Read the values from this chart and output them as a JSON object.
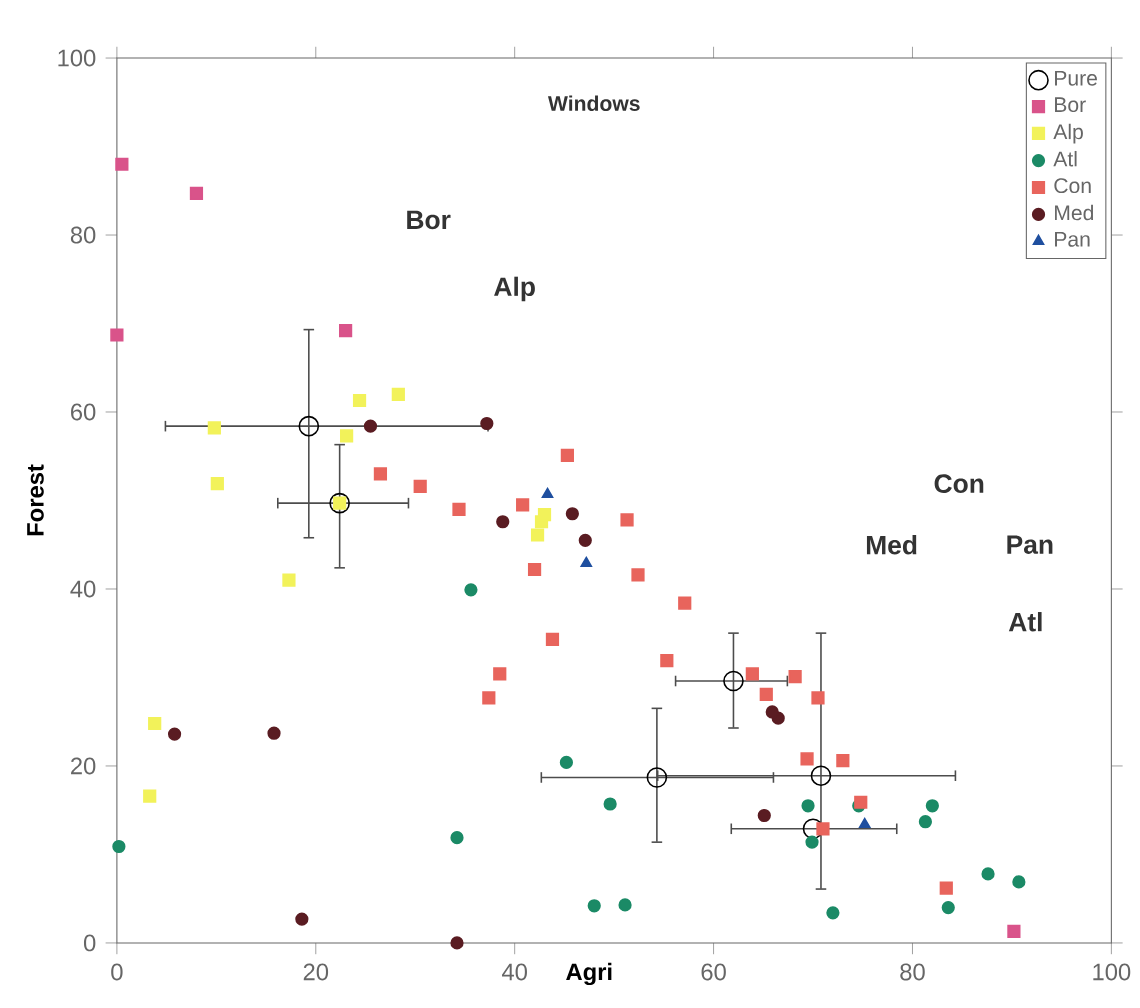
{
  "chart_data": {
    "type": "scatter",
    "xlabel": "Agri",
    "ylabel": "Forest",
    "xlim": [
      0,
      100
    ],
    "ylim": [
      0,
      100
    ],
    "xticks": [
      0,
      20,
      40,
      60,
      80,
      100
    ],
    "yticks": [
      0,
      20,
      40,
      60,
      80,
      100
    ],
    "legend": "top right",
    "annotations": [
      "Windows",
      "Bor",
      "Alp",
      "Con",
      "Med",
      "Pan",
      "Atl"
    ],
    "series": [
      {
        "name": "Pure",
        "color": "#000000",
        "marker": "circle",
        "x": [
          19.3,
          22.4,
          62.0,
          54.3,
          70.8,
          70.0
        ],
        "values": [
          58.4,
          49.7,
          29.6,
          18.7,
          18.9,
          12.9
        ],
        "xerrors": [
          [
            4.8,
            37.4
          ],
          [
            16.1,
            29.4
          ],
          [
            56.1,
            67.5
          ],
          [
            42.6,
            66.1
          ],
          [
            54.3,
            84.4
          ],
          [
            61.7,
            78.5
          ]
        ],
        "errors": [
          [
            45.7,
            69.4
          ],
          [
            42.3,
            56.4
          ],
          [
            24.2,
            35.1
          ],
          [
            11.3,
            26.6
          ],
          [
            6.0,
            35.1
          ],
          null
        ]
      },
      {
        "name": "Bor",
        "color": "#d9538a",
        "marker": "square",
        "x": [
          0.5,
          8.0,
          0,
          23.0,
          90.2
        ],
        "values": [
          88.0,
          84.7,
          68.7,
          69.2,
          1.3
        ]
      },
      {
        "name": "Alp",
        "color": "#f2f25a",
        "marker": "square",
        "x": [
          9.8,
          10.1,
          24.4,
          28.3,
          23.1,
          17.3,
          3.8,
          3.3,
          42.7,
          42.3,
          43.0,
          22.4
        ],
        "values": [
          58.2,
          51.9,
          61.3,
          62.0,
          57.3,
          41.0,
          24.8,
          16.6,
          47.6,
          46.1,
          48.4,
          49.7
        ]
      },
      {
        "name": "Atl",
        "color": "#1b8a66",
        "marker": "circle",
        "x": [
          35.6,
          0.2,
          34.2,
          45.2,
          49.6,
          48.0,
          51.1,
          69.5,
          69.9,
          74.6,
          72.0,
          82.0,
          81.3,
          87.6,
          90.7,
          83.6
        ],
        "values": [
          39.9,
          10.9,
          11.9,
          20.4,
          15.7,
          4.2,
          4.3,
          15.5,
          11.4,
          15.5,
          3.4,
          15.5,
          13.7,
          7.8,
          6.9,
          4.0
        ]
      },
      {
        "name": "Con",
        "color": "#e8645c",
        "marker": "square",
        "x": [
          26.5,
          30.5,
          34.4,
          45.3,
          42.0,
          43.8,
          38.5,
          37.4,
          52.4,
          40.8,
          51.3,
          57.1,
          55.3,
          63.9,
          65.3,
          68.2,
          70.5,
          69.4,
          73.0,
          74.8,
          71.0,
          83.4
        ],
        "values": [
          53.0,
          51.6,
          49.0,
          55.1,
          42.2,
          34.3,
          30.4,
          27.7,
          41.6,
          49.5,
          47.8,
          38.4,
          31.9,
          30.4,
          28.1,
          30.1,
          27.7,
          20.8,
          20.6,
          15.9,
          12.9,
          6.2
        ]
      },
      {
        "name": "Med",
        "color": "#5a1c22",
        "marker": "circle",
        "x": [
          25.5,
          37.2,
          5.8,
          15.8,
          18.6,
          34.2,
          38.8,
          45.8,
          47.1,
          66.5,
          65.9,
          65.1
        ],
        "values": [
          58.4,
          58.7,
          23.6,
          23.7,
          2.7,
          0,
          47.6,
          48.5,
          45.5,
          25.4,
          26.1,
          14.4
        ]
      },
      {
        "name": "Pan",
        "color": "#1f4f9f",
        "marker": "triangle",
        "x": [
          43.3,
          47.2,
          75.2
        ],
        "values": [
          50.7,
          42.9,
          13.4
        ]
      }
    ]
  }
}
